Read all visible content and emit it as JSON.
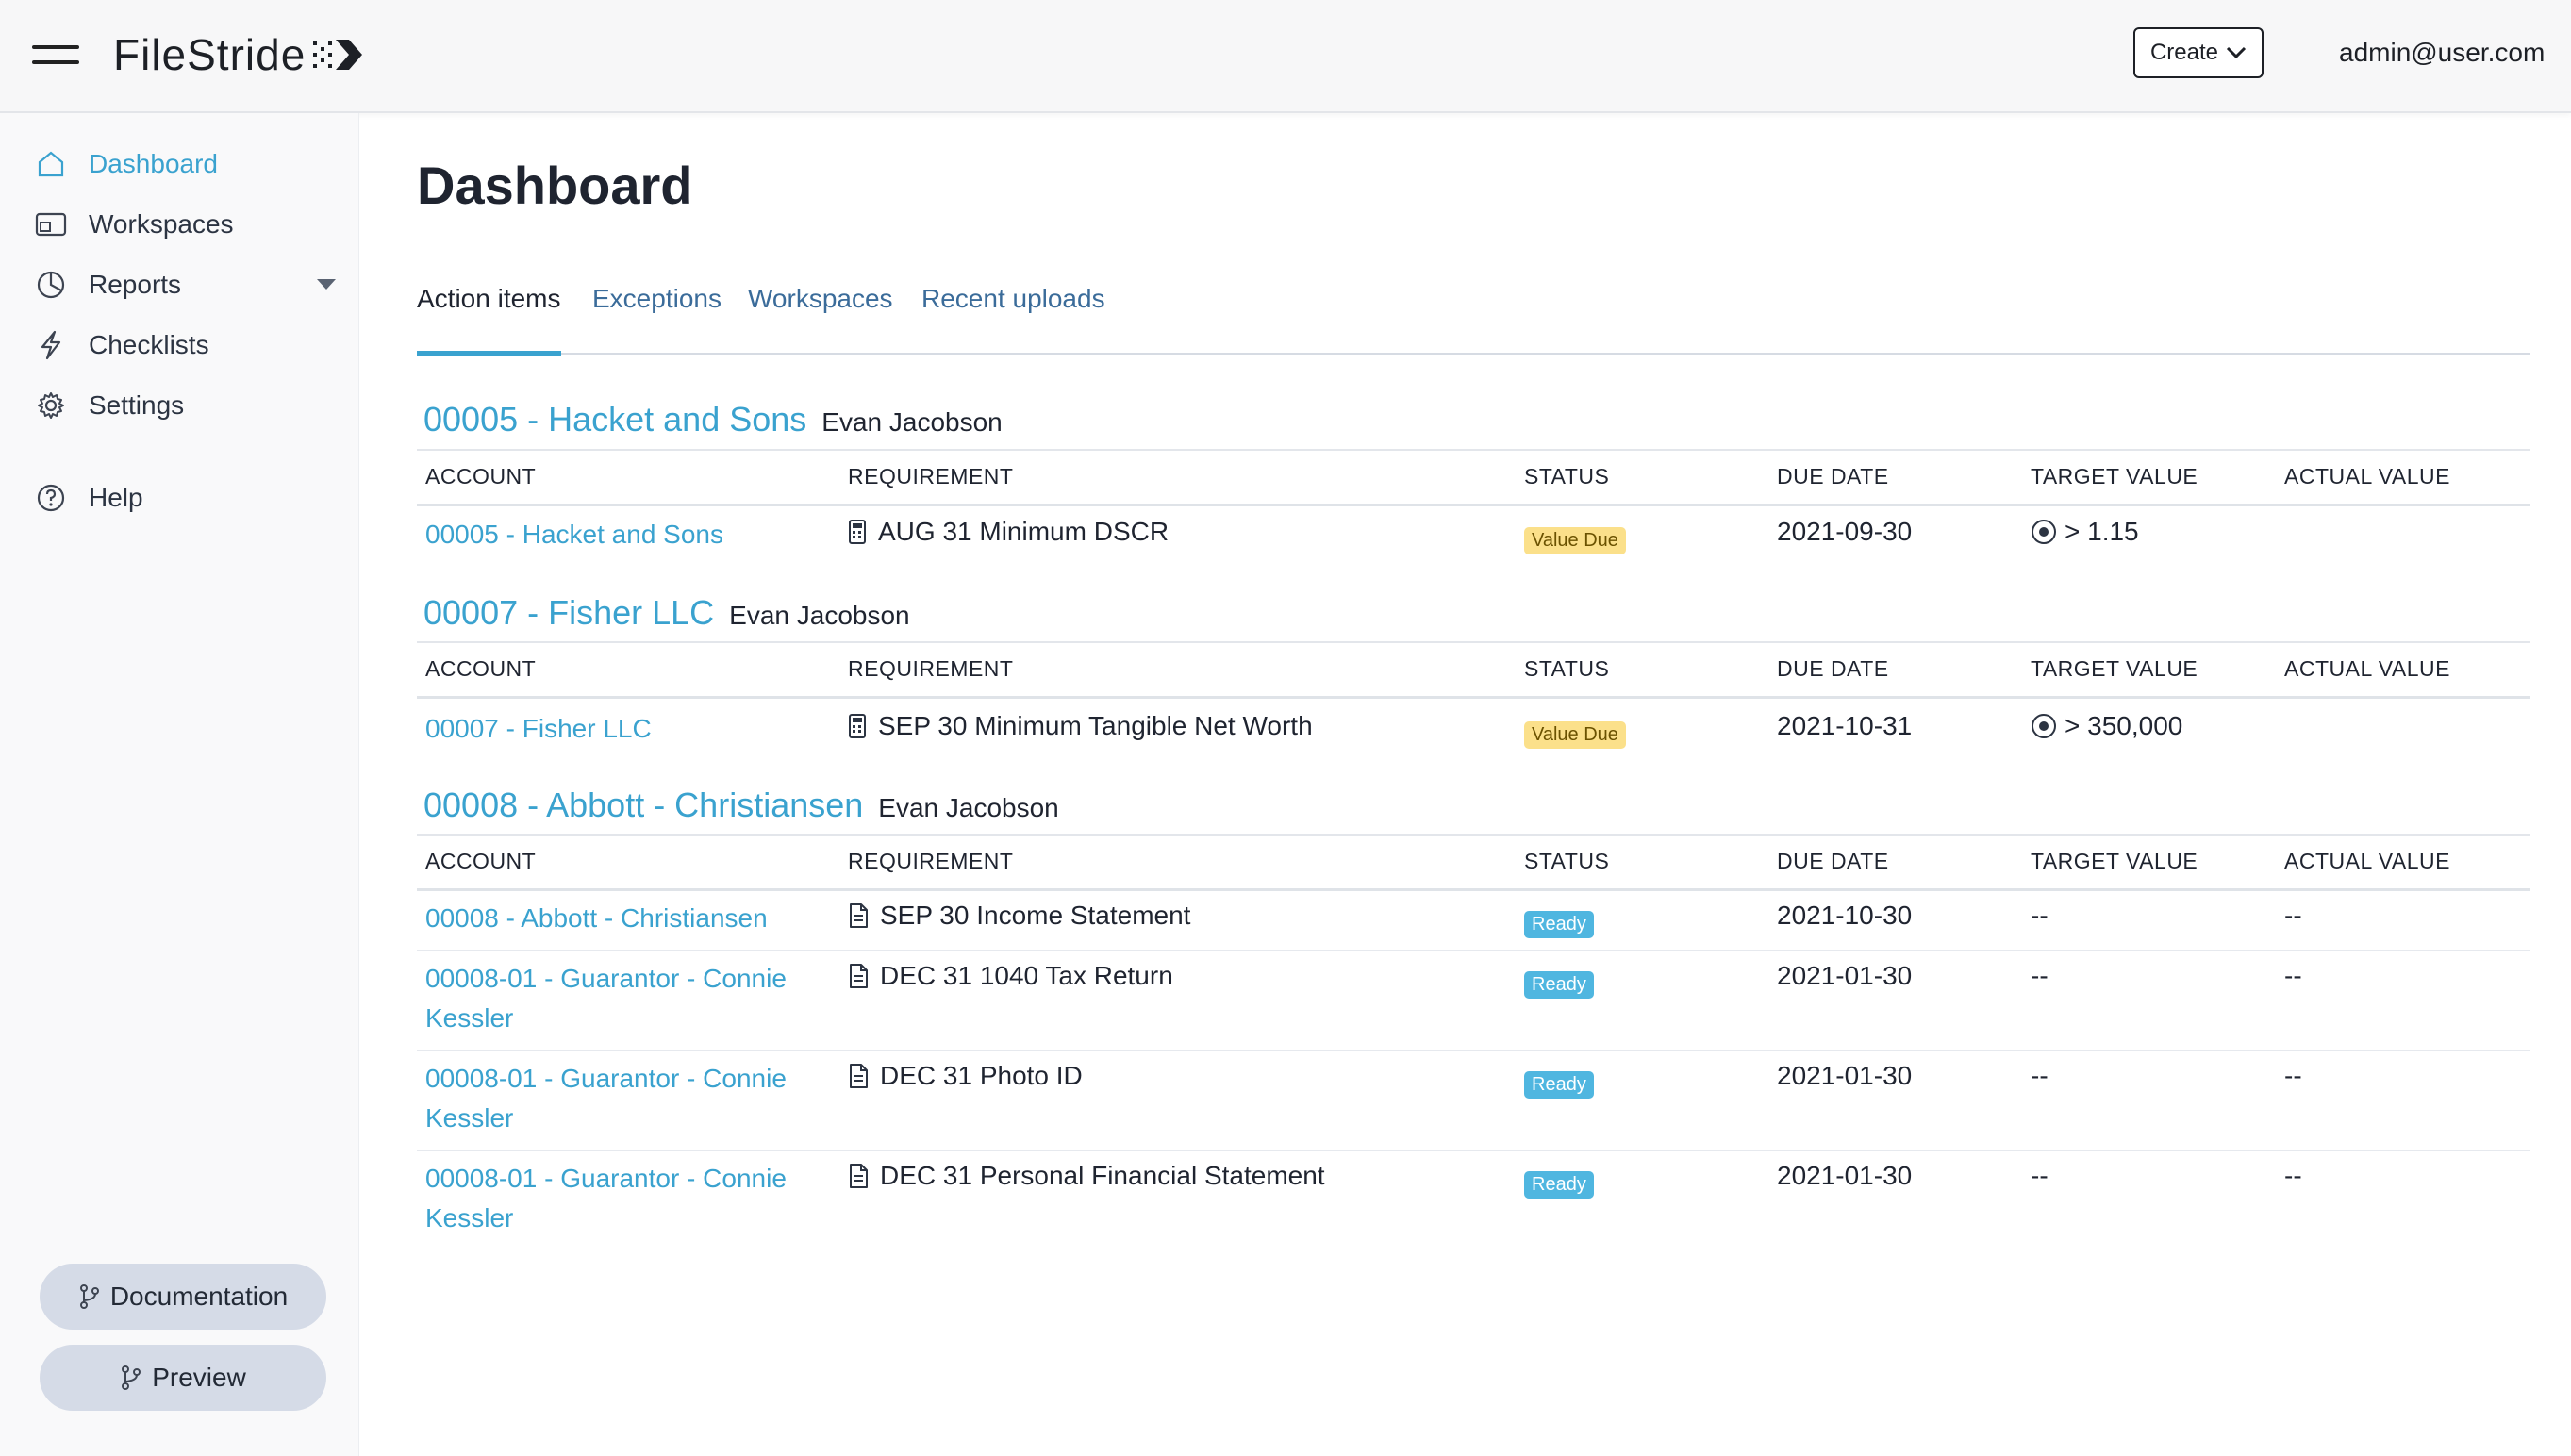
{
  "app": {
    "name": "FileStride",
    "create_label": "Create",
    "user_email": "admin@user.com"
  },
  "sidebar": {
    "items": [
      {
        "label": "Dashboard",
        "icon": "home-icon"
      },
      {
        "label": "Workspaces",
        "icon": "workspace-icon"
      },
      {
        "label": "Reports",
        "icon": "pie-chart-icon"
      },
      {
        "label": "Checklists",
        "icon": "lightning-icon"
      },
      {
        "label": "Settings",
        "icon": "gear-icon"
      },
      {
        "label": "Help",
        "icon": "help-icon"
      }
    ],
    "documentation_label": "Documentation",
    "preview_label": "Preview"
  },
  "page": {
    "title": "Dashboard",
    "tabs": [
      "Action items",
      "Exceptions",
      "Workspaces",
      "Recent uploads"
    ],
    "active_tab": "Action items"
  },
  "columns": [
    "ACCOUNT",
    "REQUIREMENT",
    "STATUS",
    "DUE DATE",
    "TARGET VALUE",
    "ACTUAL VALUE"
  ],
  "groups": [
    {
      "title": "00005 - Hacket and Sons",
      "owner": "Evan Jacobson",
      "rows": [
        {
          "account": "00005 - Hacket and Sons",
          "requirement": "AUG 31 Minimum DSCR",
          "req_icon": "calculator-icon",
          "status": "Value Due",
          "due": "2021-09-30",
          "target": "> 1.15",
          "actual": ""
        }
      ]
    },
    {
      "title": "00007 - Fisher LLC",
      "owner": "Evan Jacobson",
      "rows": [
        {
          "account": "00007 - Fisher LLC",
          "requirement": "SEP 30 Minimum Tangible Net Worth",
          "req_icon": "calculator-icon",
          "status": "Value Due",
          "due": "2021-10-31",
          "target": "> 350,000",
          "actual": ""
        }
      ]
    },
    {
      "title": "00008 - Abbott - Christiansen",
      "owner": "Evan Jacobson",
      "rows": [
        {
          "account": "00008 - Abbott - Christiansen",
          "requirement": "SEP 30 Income Statement",
          "req_icon": "document-icon",
          "status": "Ready",
          "due": "2021-10-30",
          "target": "--",
          "actual": "--"
        },
        {
          "account": "00008-01 - Guarantor - Connie Kessler",
          "requirement": "DEC 31 1040 Tax Return",
          "req_icon": "document-icon",
          "status": "Ready",
          "due": "2021-01-30",
          "target": "--",
          "actual": "--"
        },
        {
          "account": "00008-01 - Guarantor - Connie Kessler",
          "requirement": "DEC 31 Photo ID",
          "req_icon": "document-icon",
          "status": "Ready",
          "due": "2021-01-30",
          "target": "--",
          "actual": "--"
        },
        {
          "account": "00008-01 - Guarantor - Connie Kessler",
          "requirement": "DEC 31 Personal Financial Statement",
          "req_icon": "document-icon",
          "status": "Ready",
          "due": "2021-01-30",
          "target": "--",
          "actual": "--"
        }
      ]
    }
  ],
  "colors": {
    "accent": "#3aa2cf",
    "value_due_badge": "#fbe08a",
    "ready_badge": "#4fb6e0"
  }
}
